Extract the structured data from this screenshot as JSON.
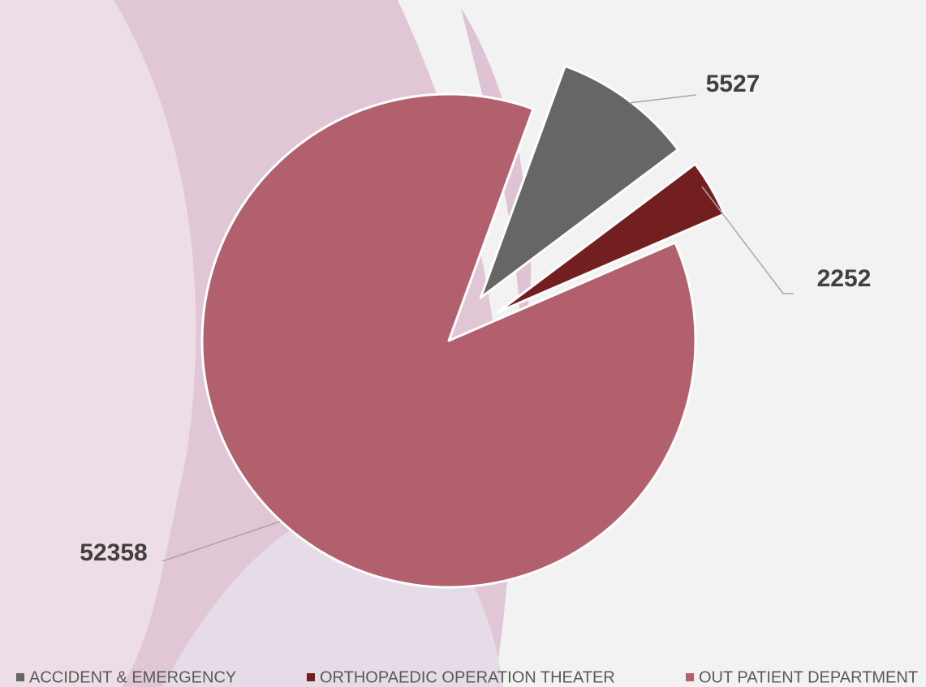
{
  "chart_data": {
    "type": "pie",
    "categories": [
      "ACCIDENT & EMERGENCY",
      "ORTHOPAEDIC OPERATION THEATER",
      "OUT PATIENT DEPARTMENT"
    ],
    "values": [
      5527,
      2252,
      52358
    ],
    "colors": [
      "#666666",
      "#741f1f",
      "#b2606d"
    ],
    "legend": "bottom"
  }
}
